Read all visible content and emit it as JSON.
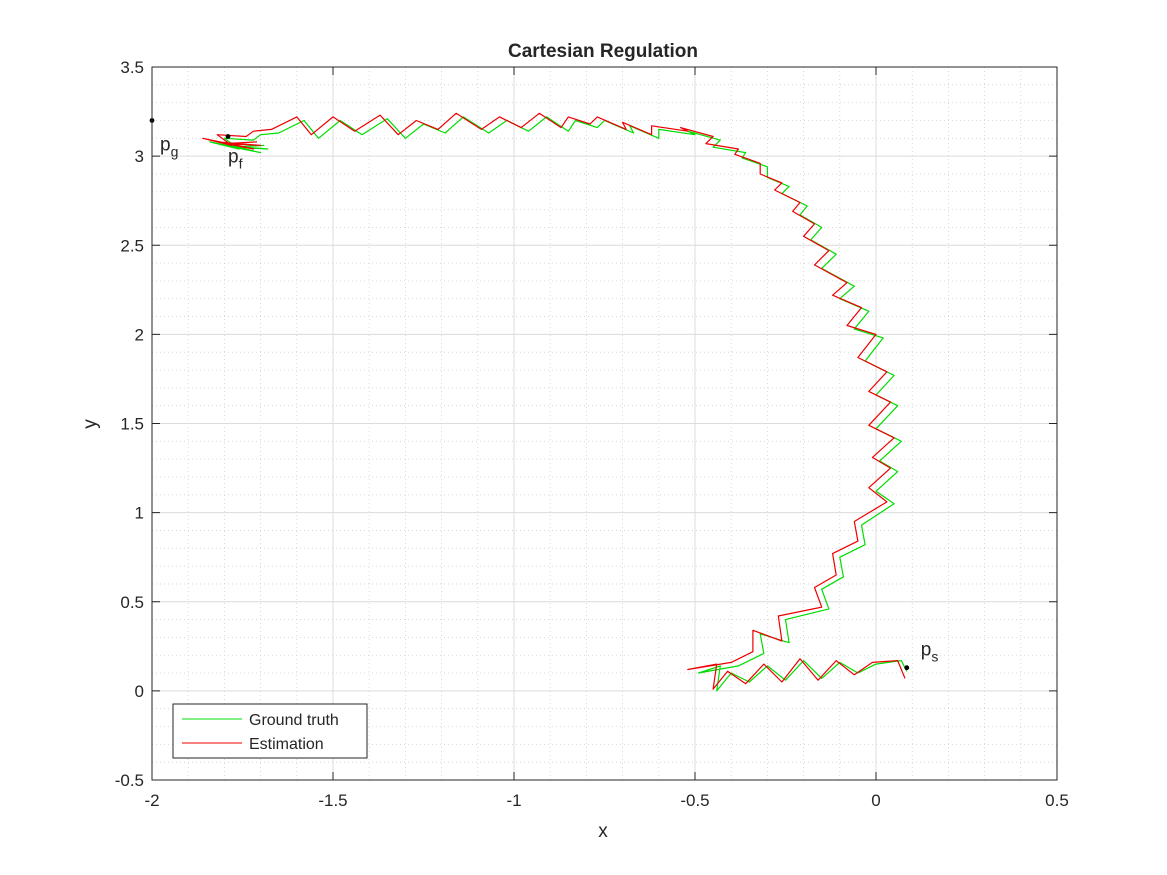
{
  "chart_data": {
    "type": "line",
    "title": "Cartesian Regulation",
    "xlabel": "x",
    "ylabel": "y",
    "xlim": [
      -2,
      0.5
    ],
    "ylim": [
      -0.5,
      3.5
    ],
    "xticks": [
      -2,
      -1.5,
      -1,
      -0.5,
      0,
      0.5
    ],
    "yticks": [
      -0.5,
      0,
      0.5,
      1,
      1.5,
      2,
      2.5,
      3,
      3.5
    ],
    "xtick_labels": [
      "-2",
      "-1.5",
      "-1",
      "-0.5",
      "0",
      "0.5"
    ],
    "ytick_labels": [
      "-0.5",
      "0",
      "0.5",
      "1",
      "1.5",
      "2",
      "2.5",
      "3",
      "3.5"
    ],
    "grid": true,
    "minor_grid": true,
    "legend_position": "bottom-left",
    "legend": [
      "Ground truth",
      "Estimation"
    ],
    "points": [
      {
        "name": "p_g",
        "main": "p",
        "sub": "g",
        "x": -2.0,
        "y": 3.2
      },
      {
        "name": "p_f",
        "main": "p",
        "sub": "f",
        "x": -1.79,
        "y": 3.11
      },
      {
        "name": "p_s",
        "main": "p",
        "sub": "s",
        "x": 0.085,
        "y": 0.13
      }
    ],
    "series": [
      {
        "name": "Ground truth",
        "color": "#00dd00",
        "x": [
          0.085,
          0.07,
          0.0,
          -0.05,
          -0.1,
          -0.15,
          -0.2,
          -0.25,
          -0.3,
          -0.35,
          -0.4,
          -0.44,
          -0.43,
          -0.49,
          -0.38,
          -0.31,
          -0.32,
          -0.24,
          -0.25,
          -0.13,
          -0.15,
          -0.09,
          -0.1,
          -0.03,
          -0.04,
          0.05,
          0.0,
          0.06,
          0.01,
          0.07,
          0.0,
          0.06,
          0.0,
          0.05,
          -0.03,
          0.02,
          -0.06,
          -0.02,
          -0.1,
          -0.06,
          -0.15,
          -0.11,
          -0.18,
          -0.15,
          -0.21,
          -0.19,
          -0.26,
          -0.24,
          -0.3,
          -0.3,
          -0.37,
          -0.36,
          -0.45,
          -0.43,
          -0.52,
          -0.5,
          -0.6,
          -0.6,
          -0.68,
          -0.67,
          -0.75,
          -0.77,
          -0.83,
          -0.85,
          -0.91,
          -0.96,
          -1.02,
          -1.07,
          -1.14,
          -1.19,
          -1.25,
          -1.3,
          -1.35,
          -1.42,
          -1.48,
          -1.54,
          -1.58,
          -1.65,
          -1.7,
          -1.72,
          -1.8,
          -1.76,
          -1.84,
          -1.72,
          -1.82,
          -1.7,
          -1.8,
          -1.68,
          -1.78,
          -1.69
        ],
        "y": [
          0.11,
          0.17,
          0.15,
          0.1,
          0.16,
          0.07,
          0.17,
          0.06,
          0.14,
          0.05,
          0.1,
          0.0,
          0.14,
          0.1,
          0.14,
          0.21,
          0.32,
          0.27,
          0.4,
          0.46,
          0.57,
          0.64,
          0.75,
          0.82,
          0.93,
          1.05,
          1.12,
          1.23,
          1.29,
          1.4,
          1.47,
          1.6,
          1.66,
          1.77,
          1.85,
          1.98,
          2.03,
          2.13,
          2.2,
          2.27,
          2.37,
          2.45,
          2.53,
          2.6,
          2.67,
          2.72,
          2.79,
          2.83,
          2.88,
          2.94,
          2.99,
          3.02,
          3.05,
          3.09,
          3.14,
          3.12,
          3.15,
          3.1,
          3.17,
          3.13,
          3.2,
          3.16,
          3.2,
          3.14,
          3.22,
          3.14,
          3.2,
          3.13,
          3.22,
          3.13,
          3.18,
          3.1,
          3.21,
          3.12,
          3.2,
          3.1,
          3.2,
          3.13,
          3.12,
          3.09,
          3.1,
          3.04,
          3.08,
          3.03,
          3.07,
          3.02,
          3.06,
          3.04,
          3.05,
          3.06
        ]
      },
      {
        "name": "Estimation",
        "color": "#ee0000",
        "x": [
          0.08,
          0.06,
          -0.01,
          -0.06,
          -0.11,
          -0.16,
          -0.21,
          -0.26,
          -0.31,
          -0.36,
          -0.41,
          -0.45,
          -0.44,
          -0.52,
          -0.4,
          -0.34,
          -0.34,
          -0.26,
          -0.27,
          -0.15,
          -0.17,
          -0.11,
          -0.12,
          -0.05,
          -0.06,
          0.03,
          -0.02,
          0.04,
          -0.01,
          0.05,
          -0.02,
          0.04,
          -0.02,
          0.03,
          -0.05,
          0.0,
          -0.08,
          -0.04,
          -0.12,
          -0.08,
          -0.17,
          -0.13,
          -0.2,
          -0.17,
          -0.23,
          -0.21,
          -0.28,
          -0.26,
          -0.32,
          -0.32,
          -0.39,
          -0.38,
          -0.47,
          -0.45,
          -0.54,
          -0.52,
          -0.62,
          -0.62,
          -0.7,
          -0.69,
          -0.77,
          -0.79,
          -0.85,
          -0.87,
          -0.93,
          -0.98,
          -1.04,
          -1.09,
          -1.16,
          -1.21,
          -1.27,
          -1.32,
          -1.37,
          -1.44,
          -1.5,
          -1.56,
          -1.6,
          -1.67,
          -1.72,
          -1.74,
          -1.82,
          -1.78,
          -1.86,
          -1.74,
          -1.84,
          -1.72,
          -1.82,
          -1.7,
          -1.8,
          -1.71
        ],
        "y": [
          0.07,
          0.17,
          0.16,
          0.09,
          0.17,
          0.06,
          0.18,
          0.05,
          0.15,
          0.04,
          0.11,
          0.01,
          0.15,
          0.12,
          0.16,
          0.22,
          0.34,
          0.28,
          0.42,
          0.47,
          0.58,
          0.65,
          0.77,
          0.84,
          0.95,
          1.06,
          1.14,
          1.25,
          1.31,
          1.42,
          1.49,
          1.62,
          1.68,
          1.79,
          1.87,
          2.0,
          2.05,
          2.15,
          2.22,
          2.29,
          2.39,
          2.47,
          2.55,
          2.62,
          2.69,
          2.74,
          2.81,
          2.85,
          2.9,
          2.96,
          3.01,
          3.04,
          3.07,
          3.11,
          3.16,
          3.14,
          3.17,
          3.12,
          3.19,
          3.15,
          3.22,
          3.18,
          3.22,
          3.16,
          3.24,
          3.16,
          3.22,
          3.15,
          3.24,
          3.15,
          3.2,
          3.12,
          3.23,
          3.14,
          3.22,
          3.12,
          3.22,
          3.15,
          3.14,
          3.11,
          3.12,
          3.06,
          3.1,
          3.05,
          3.09,
          3.04,
          3.08,
          3.06,
          3.07,
          3.08
        ]
      }
    ]
  }
}
